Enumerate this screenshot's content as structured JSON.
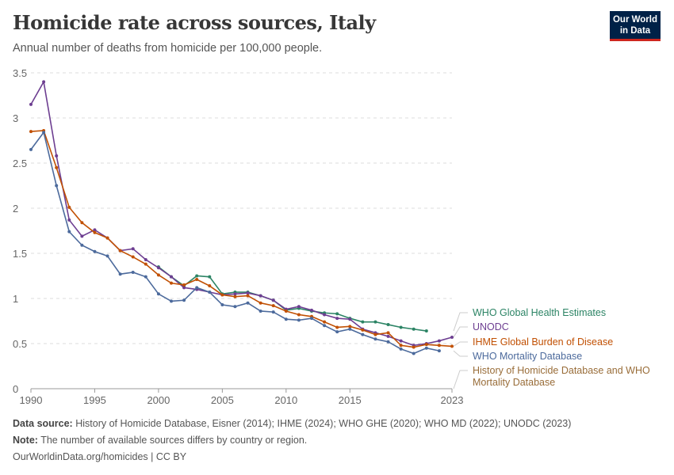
{
  "header": {
    "title": "Homicide rate across sources, Italy",
    "subtitle": "Annual number of deaths from homicide per 100,000 people.",
    "logo": "Our World in Data"
  },
  "footer": {
    "source_label": "Data source:",
    "source": "History of Homicide Database, Eisner (2014); IHME (2024); WHO GHE (2020); WHO MD (2022); UNODC (2023)",
    "note_label": "Note:",
    "note": "The number of available sources differs by country or region.",
    "credit": "OurWorldinData.org/homicides | CC BY"
  },
  "chart_data": {
    "type": "line",
    "title": "Homicide rate across sources, Italy",
    "ylim": [
      0,
      3.5
    ],
    "xlim": [
      1990,
      2023
    ],
    "yticks": [
      0,
      0.5,
      1,
      1.5,
      2,
      2.5,
      3,
      3.5
    ],
    "xticks": [
      1990,
      1995,
      2000,
      2005,
      2010,
      2015,
      2023
    ],
    "grid": "horizontal dashed",
    "legend": "right, end-of-line labels",
    "series": [
      {
        "name": "WHO Global Health Estimates",
        "color": "#2c8465",
        "x": [
          2000,
          2001,
          2002,
          2003,
          2004,
          2005,
          2006,
          2007,
          2008,
          2009,
          2010,
          2011,
          2012,
          2013,
          2014,
          2015,
          2016,
          2017,
          2018,
          2019,
          2020,
          2021
        ],
        "values": [
          1.35,
          1.24,
          1.14,
          1.25,
          1.24,
          1.05,
          1.07,
          1.07,
          1.03,
          0.98,
          0.87,
          0.89,
          0.86,
          0.84,
          0.83,
          0.78,
          0.74,
          0.74,
          0.71,
          0.68,
          0.66,
          0.64
        ]
      },
      {
        "name": "UNODC",
        "color": "#6d3e91",
        "x": [
          1990,
          1991,
          1992,
          1993,
          1994,
          1995,
          1996,
          1997,
          1998,
          1999,
          2000,
          2001,
          2002,
          2003,
          2004,
          2005,
          2006,
          2007,
          2008,
          2009,
          2010,
          2011,
          2012,
          2013,
          2014,
          2015,
          2016,
          2017,
          2018,
          2019,
          2020,
          2021,
          2022,
          2023
        ],
        "values": [
          3.15,
          3.4,
          2.58,
          1.87,
          1.69,
          1.76,
          1.67,
          1.53,
          1.55,
          1.43,
          1.34,
          1.24,
          1.12,
          1.1,
          1.07,
          1.04,
          1.05,
          1.06,
          1.03,
          0.98,
          0.88,
          0.91,
          0.87,
          0.82,
          0.78,
          0.77,
          0.66,
          0.62,
          0.58,
          0.53,
          0.48,
          0.5,
          0.53,
          0.57
        ]
      },
      {
        "name": "IHME Global Burden of Disease",
        "color": "#c15003",
        "x": [
          1990,
          1991,
          1992,
          1993,
          1994,
          1995,
          1996,
          1997,
          1998,
          1999,
          2000,
          2001,
          2002,
          2003,
          2004,
          2005,
          2006,
          2007,
          2008,
          2009,
          2010,
          2011,
          2012,
          2013,
          2014,
          2015,
          2016,
          2017,
          2018,
          2019,
          2020,
          2021,
          2022,
          2023
        ],
        "values": [
          2.85,
          2.86,
          2.45,
          2.01,
          1.84,
          1.73,
          1.67,
          1.53,
          1.46,
          1.38,
          1.26,
          1.17,
          1.15,
          1.21,
          1.14,
          1.04,
          1.02,
          1.03,
          0.95,
          0.92,
          0.86,
          0.82,
          0.8,
          0.74,
          0.68,
          0.69,
          0.65,
          0.6,
          0.62,
          0.48,
          0.46,
          0.49,
          0.48,
          0.47
        ]
      },
      {
        "name": "WHO Mortality Database",
        "color": "#4c6a9c",
        "x": [
          1990,
          1991,
          1992,
          1993,
          1994,
          1995,
          1996,
          1997,
          1998,
          1999,
          2000,
          2001,
          2002,
          2003,
          2004,
          2005,
          2006,
          2007,
          2008,
          2009,
          2010,
          2011,
          2012,
          2013,
          2014,
          2015,
          2016,
          2017,
          2018,
          2019,
          2020,
          2021,
          2022
        ],
        "values": [
          2.65,
          2.84,
          2.25,
          1.74,
          1.59,
          1.52,
          1.47,
          1.27,
          1.29,
          1.24,
          1.05,
          0.97,
          0.98,
          1.12,
          1.07,
          0.93,
          0.91,
          0.95,
          0.86,
          0.85,
          0.77,
          0.76,
          0.78,
          0.7,
          0.63,
          0.66,
          0.6,
          0.55,
          0.52,
          0.44,
          0.39,
          0.45,
          0.42
        ]
      },
      {
        "name": "History of Homicide Database and WHO Mortality Database",
        "color": "#996d39",
        "x": [],
        "values": []
      }
    ]
  }
}
